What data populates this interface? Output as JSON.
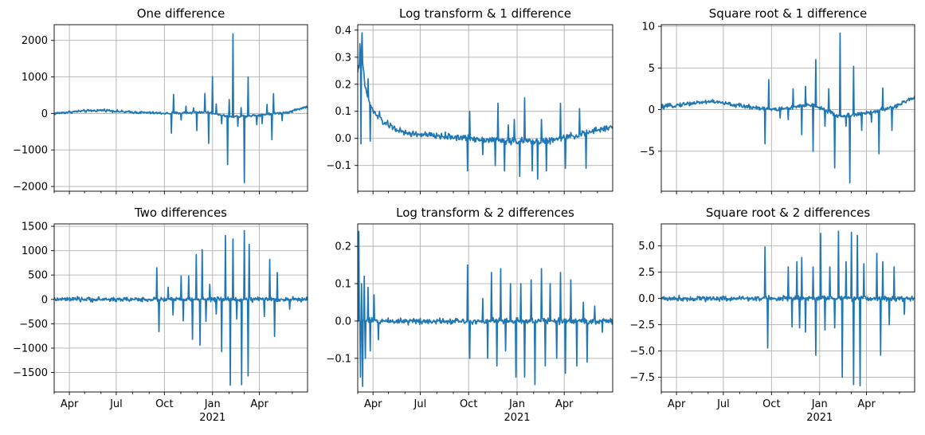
{
  "figure": {
    "background": "#ffffff",
    "line_color": "#1f77b4"
  },
  "chart_data": [
    {
      "type": "line",
      "title": "One difference",
      "xlabel": "",
      "ylabel": "",
      "ylim": [
        -2130,
        2430
      ],
      "yticks": [
        {
          "v": 2000,
          "label": "2000"
        },
        {
          "v": 1000,
          "label": "1000"
        },
        {
          "v": 0,
          "label": "0"
        },
        {
          "v": -1000,
          "label": "−1000"
        },
        {
          "v": -2000,
          "label": "−2000"
        }
      ],
      "show_xlabels": false,
      "grid": true,
      "series": [
        {
          "base": 0.0,
          "noise": 35,
          "trend": [
            [
              0,
              0
            ],
            [
              0.1,
              60
            ],
            [
              0.2,
              90
            ],
            [
              0.28,
              40
            ],
            [
              0.45,
              0
            ],
            [
              0.6,
              40
            ],
            [
              0.7,
              -90
            ],
            [
              0.8,
              -50
            ],
            [
              0.92,
              30
            ],
            [
              1.0,
              190
            ]
          ],
          "spikes": [
            [
              0.462,
              -540
            ],
            [
              0.471,
              520
            ],
            [
              0.5,
              -180
            ],
            [
              0.52,
              200
            ],
            [
              0.55,
              150
            ],
            [
              0.562,
              -470
            ],
            [
              0.595,
              550
            ],
            [
              0.61,
              -820
            ],
            [
              0.625,
              1010
            ],
            [
              0.64,
              260
            ],
            [
              0.66,
              -280
            ],
            [
              0.685,
              -1400
            ],
            [
              0.69,
              380
            ],
            [
              0.705,
              2180
            ],
            [
              0.725,
              -350
            ],
            [
              0.738,
              160
            ],
            [
              0.75,
              -1900
            ],
            [
              0.765,
              1000
            ],
            [
              0.8,
              -310
            ],
            [
              0.82,
              -280
            ],
            [
              0.84,
              250
            ],
            [
              0.865,
              540
            ],
            [
              0.86,
              -720
            ],
            [
              0.9,
              -200
            ]
          ]
        }
      ]
    },
    {
      "type": "line",
      "title": "Log transform & 1 difference",
      "xlabel": "",
      "ylabel": "",
      "ylim": [
        -0.195,
        0.42
      ],
      "yticks": [
        {
          "v": 0.4,
          "label": "0.4"
        },
        {
          "v": 0.3,
          "label": "0.3"
        },
        {
          "v": 0.2,
          "label": "0.2"
        },
        {
          "v": 0.1,
          "label": "0.1"
        },
        {
          "v": 0.0,
          "label": "0.0"
        },
        {
          "v": -0.1,
          "label": "−0.1"
        }
      ],
      "show_xlabels": false,
      "grid": true,
      "series": [
        {
          "base": 0.0,
          "noise": 0.012,
          "trend": [
            [
              0,
              0.25
            ],
            [
              0.015,
              0.32
            ],
            [
              0.03,
              0.18
            ],
            [
              0.06,
              0.1
            ],
            [
              0.1,
              0.06
            ],
            [
              0.18,
              0.02
            ],
            [
              0.3,
              0.01
            ],
            [
              0.45,
              0.0
            ],
            [
              0.6,
              -0.01
            ],
            [
              0.75,
              -0.01
            ],
            [
              0.9,
              0.02
            ],
            [
              1.0,
              0.045
            ]
          ],
          "spikes": [
            [
              0.008,
              0.35
            ],
            [
              0.018,
              0.39
            ],
            [
              0.012,
              -0.02
            ],
            [
              0.04,
              0.22
            ],
            [
              0.05,
              -0.01
            ],
            [
              0.085,
              0.1
            ],
            [
              0.43,
              -0.12
            ],
            [
              0.44,
              0.1
            ],
            [
              0.49,
              -0.06
            ],
            [
              0.54,
              -0.1
            ],
            [
              0.55,
              0.13
            ],
            [
              0.575,
              -0.12
            ],
            [
              0.59,
              0.05
            ],
            [
              0.615,
              0.07
            ],
            [
              0.635,
              -0.14
            ],
            [
              0.655,
              0.15
            ],
            [
              0.685,
              -0.12
            ],
            [
              0.705,
              -0.15
            ],
            [
              0.72,
              0.07
            ],
            [
              0.74,
              -0.12
            ],
            [
              0.795,
              0.13
            ],
            [
              0.815,
              -0.11
            ],
            [
              0.87,
              0.11
            ],
            [
              0.895,
              -0.11
            ]
          ]
        }
      ]
    },
    {
      "type": "line",
      "title": "Square root & 1 difference",
      "xlabel": "",
      "ylabel": "",
      "ylim": [
        -9.8,
        10.2
      ],
      "yticks": [
        {
          "v": 10,
          "label": "10"
        },
        {
          "v": 5,
          "label": "5"
        },
        {
          "v": 0,
          "label": "0"
        },
        {
          "v": -5,
          "label": "−5"
        }
      ],
      "show_xlabels": false,
      "grid": true,
      "series": [
        {
          "base": 0.0,
          "noise": 0.25,
          "trend": [
            [
              0,
              0.3
            ],
            [
              0.1,
              0.7
            ],
            [
              0.2,
              1.0
            ],
            [
              0.3,
              0.5
            ],
            [
              0.45,
              0.0
            ],
            [
              0.6,
              0.6
            ],
            [
              0.7,
              -0.8
            ],
            [
              0.8,
              -0.5
            ],
            [
              0.92,
              0.3
            ],
            [
              1.0,
              1.5
            ]
          ],
          "spikes": [
            [
              0.41,
              -4.1
            ],
            [
              0.425,
              3.6
            ],
            [
              0.47,
              -1.0
            ],
            [
              0.52,
              2.5
            ],
            [
              0.5,
              -1.2
            ],
            [
              0.555,
              -3.0
            ],
            [
              0.57,
              2.8
            ],
            [
              0.6,
              -5.0
            ],
            [
              0.61,
              6.0
            ],
            [
              0.645,
              -2.0
            ],
            [
              0.66,
              2.5
            ],
            [
              0.685,
              -7.0
            ],
            [
              0.705,
              9.2
            ],
            [
              0.73,
              -2.0
            ],
            [
              0.745,
              -8.8
            ],
            [
              0.76,
              5.2
            ],
            [
              0.79,
              -2.5
            ],
            [
              0.83,
              -1.5
            ],
            [
              0.86,
              -5.3
            ],
            [
              0.875,
              2.6
            ],
            [
              0.91,
              -2.5
            ]
          ]
        }
      ]
    },
    {
      "type": "line",
      "title": "Two differences",
      "xlabel": "2021",
      "ylabel": "",
      "ylim": [
        -1900,
        1550
      ],
      "yticks": [
        {
          "v": 1500,
          "label": "1500"
        },
        {
          "v": 1000,
          "label": "1000"
        },
        {
          "v": 500,
          "label": "500"
        },
        {
          "v": 0,
          "label": "0"
        },
        {
          "v": -500,
          "label": "−500"
        },
        {
          "v": -1000,
          "label": "−1000"
        },
        {
          "v": -1500,
          "label": "−1500"
        }
      ],
      "show_xlabels": true,
      "grid": true,
      "series": [
        {
          "base": 0.0,
          "noise": 45,
          "trend": [
            [
              0,
              0
            ],
            [
              1.0,
              0
            ]
          ],
          "spikes": [
            [
              0.405,
              650
            ],
            [
              0.413,
              -660
            ],
            [
              0.45,
              250
            ],
            [
              0.47,
              -320
            ],
            [
              0.5,
              480
            ],
            [
              0.51,
              -440
            ],
            [
              0.53,
              480
            ],
            [
              0.545,
              -820
            ],
            [
              0.56,
              920
            ],
            [
              0.575,
              -940
            ],
            [
              0.585,
              1020
            ],
            [
              0.6,
              -450
            ],
            [
              0.615,
              310
            ],
            [
              0.64,
              -300
            ],
            [
              0.66,
              -1070
            ],
            [
              0.675,
              1310
            ],
            [
              0.695,
              -1760
            ],
            [
              0.705,
              1240
            ],
            [
              0.72,
              -400
            ],
            [
              0.74,
              -1750
            ],
            [
              0.75,
              1410
            ],
            [
              0.765,
              -1570
            ],
            [
              0.77,
              1130
            ],
            [
              0.83,
              -350
            ],
            [
              0.85,
              820
            ],
            [
              0.87,
              -760
            ],
            [
              0.88,
              550
            ],
            [
              0.93,
              -200
            ]
          ]
        }
      ]
    },
    {
      "type": "line",
      "title": "Log transform & 2 differences",
      "xlabel": "2021",
      "ylabel": "",
      "ylim": [
        -0.19,
        0.26
      ],
      "yticks": [
        {
          "v": 0.2,
          "label": "0.2"
        },
        {
          "v": 0.1,
          "label": "0.1"
        },
        {
          "v": 0.0,
          "label": "0.0"
        },
        {
          "v": -0.1,
          "label": "−0.1"
        }
      ],
      "show_xlabels": true,
      "grid": true,
      "series": [
        {
          "base": 0.0,
          "noise": 0.008,
          "trend": [
            [
              0,
              0
            ],
            [
              1.0,
              0
            ]
          ],
          "spikes": [
            [
              0.005,
              0.24
            ],
            [
              0.01,
              -0.15
            ],
            [
              0.015,
              0.1
            ],
            [
              0.02,
              -0.175
            ],
            [
              0.025,
              0.12
            ],
            [
              0.03,
              -0.1
            ],
            [
              0.04,
              0.09
            ],
            [
              0.05,
              -0.08
            ],
            [
              0.065,
              0.07
            ],
            [
              0.08,
              -0.05
            ],
            [
              0.43,
              0.15
            ],
            [
              0.44,
              -0.1
            ],
            [
              0.49,
              0.06
            ],
            [
              0.51,
              -0.1
            ],
            [
              0.525,
              0.13
            ],
            [
              0.545,
              -0.12
            ],
            [
              0.56,
              0.14
            ],
            [
              0.58,
              -0.08
            ],
            [
              0.6,
              0.1
            ],
            [
              0.62,
              -0.15
            ],
            [
              0.64,
              0.1
            ],
            [
              0.655,
              -0.15
            ],
            [
              0.68,
              0.11
            ],
            [
              0.695,
              -0.17
            ],
            [
              0.72,
              0.14
            ],
            [
              0.735,
              -0.12
            ],
            [
              0.755,
              0.1
            ],
            [
              0.78,
              -0.1
            ],
            [
              0.795,
              0.13
            ],
            [
              0.815,
              -0.14
            ],
            [
              0.835,
              0.11
            ],
            [
              0.86,
              -0.12
            ],
            [
              0.885,
              0.05
            ],
            [
              0.9,
              -0.11
            ],
            [
              0.93,
              0.04
            ],
            [
              0.96,
              -0.03
            ]
          ]
        }
      ]
    },
    {
      "type": "line",
      "title": "Square root & 2 differences",
      "xlabel": "2021",
      "ylabel": "",
      "ylim": [
        -8.9,
        7.1
      ],
      "yticks": [
        {
          "v": 5.0,
          "label": "5.0"
        },
        {
          "v": 2.5,
          "label": "2.5"
        },
        {
          "v": 0.0,
          "label": "0.0"
        },
        {
          "v": -2.5,
          "label": "−2.5"
        },
        {
          "v": -5.0,
          "label": "−5.0"
        },
        {
          "v": -7.5,
          "label": "−7.5"
        }
      ],
      "show_xlabels": true,
      "grid": true,
      "series": [
        {
          "base": 0.0,
          "noise": 0.25,
          "trend": [
            [
              0,
              0
            ],
            [
              1.0,
              0
            ]
          ],
          "spikes": [
            [
              0.41,
              4.9
            ],
            [
              0.42,
              -4.7
            ],
            [
              0.5,
              3.0
            ],
            [
              0.515,
              -2.7
            ],
            [
              0.535,
              3.5
            ],
            [
              0.545,
              -2.8
            ],
            [
              0.555,
              3.9
            ],
            [
              0.57,
              -3.2
            ],
            [
              0.6,
              3.0
            ],
            [
              0.61,
              -5.4
            ],
            [
              0.63,
              6.2
            ],
            [
              0.645,
              -3.0
            ],
            [
              0.665,
              3.0
            ],
            [
              0.685,
              -2.8
            ],
            [
              0.7,
              6.4
            ],
            [
              0.715,
              -7.5
            ],
            [
              0.73,
              3.5
            ],
            [
              0.75,
              6.3
            ],
            [
              0.76,
              -8.2
            ],
            [
              0.775,
              6.0
            ],
            [
              0.785,
              -8.3
            ],
            [
              0.8,
              3.3
            ],
            [
              0.85,
              4.3
            ],
            [
              0.865,
              -5.4
            ],
            [
              0.875,
              3.5
            ],
            [
              0.9,
              -2.5
            ],
            [
              0.92,
              3.0
            ],
            [
              0.96,
              -1.5
            ]
          ]
        }
      ]
    }
  ],
  "x_axis": {
    "month_ticks": [
      {
        "f": 0.06,
        "label": "Apr"
      },
      {
        "f": 0.245,
        "label": "Jul"
      },
      {
        "f": 0.435,
        "label": "Oct"
      },
      {
        "f": 0.625,
        "label": "Jan"
      },
      {
        "f": 0.81,
        "label": "Apr"
      }
    ],
    "minor_ticks": [
      0.0,
      0.12,
      0.185,
      0.31,
      0.375,
      0.5,
      0.565,
      0.69,
      0.75,
      0.875,
      0.94
    ],
    "year_label": "2021"
  }
}
